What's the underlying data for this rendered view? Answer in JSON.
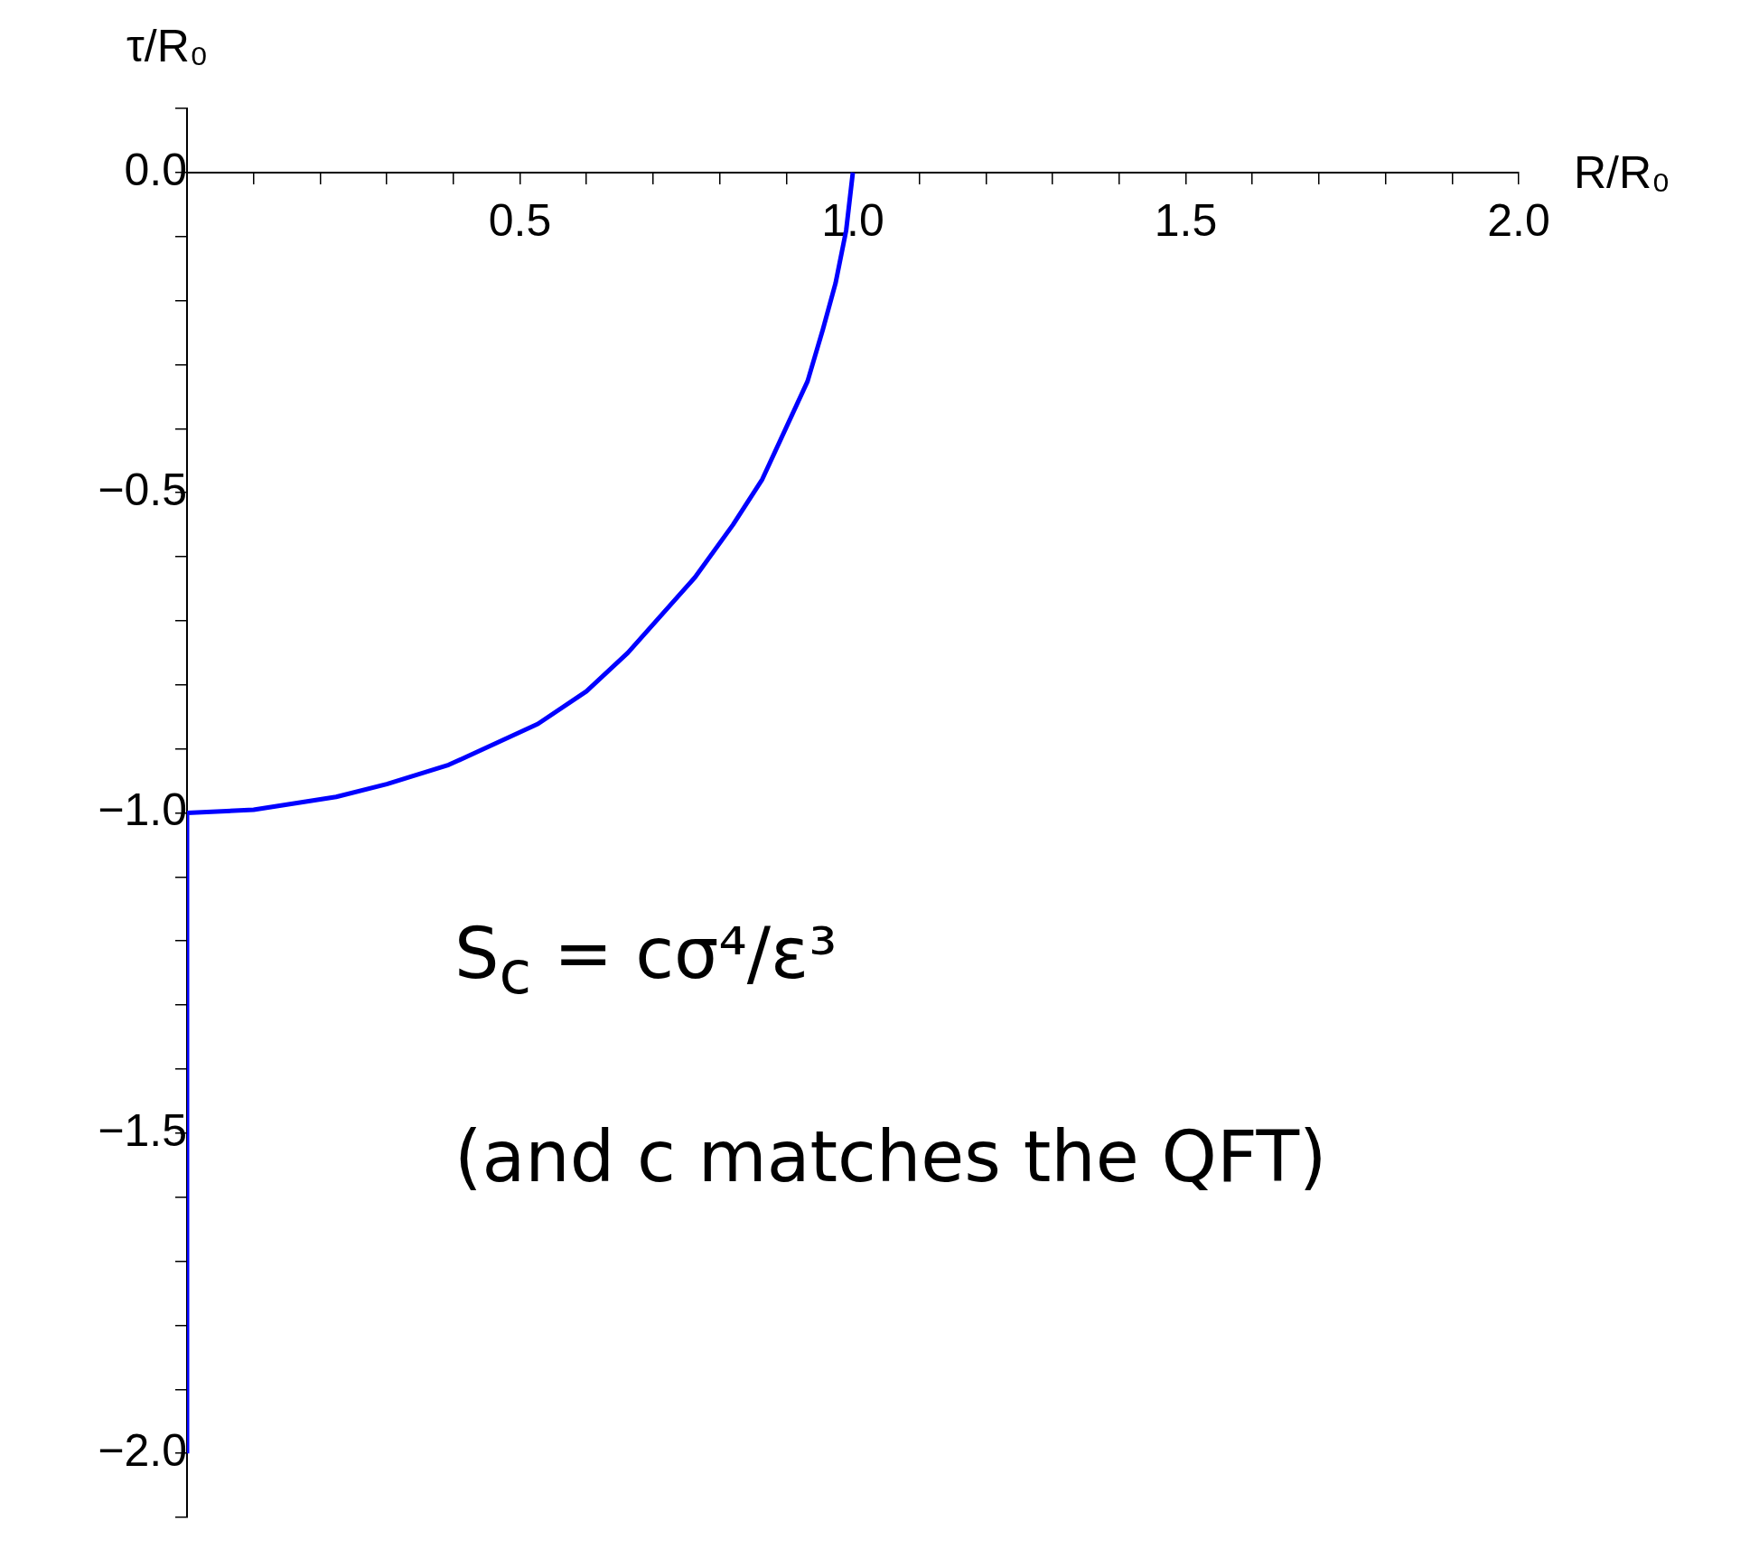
{
  "chart_data": {
    "type": "line",
    "xlabel": "R/R₀",
    "ylabel": "τ/R₀",
    "annotations": [
      "S$_{c}$ = cσ⁴/ε³",
      "(and c matches the QFT)"
    ],
    "xlim": [
      0,
      2
    ],
    "ylim": [
      -2.1,
      0.1
    ],
    "xticks": [
      {
        "value": 0,
        "label": null
      },
      {
        "value": 0.1,
        "label": null
      },
      {
        "value": 0.2,
        "label": null
      },
      {
        "value": 0.3,
        "label": null
      },
      {
        "value": 0.4,
        "label": null
      },
      {
        "value": 0.5,
        "label": "0.5"
      },
      {
        "value": 0.6,
        "label": null
      },
      {
        "value": 0.7,
        "label": null
      },
      {
        "value": 0.8,
        "label": null
      },
      {
        "value": 0.9,
        "label": null
      },
      {
        "value": 1,
        "label": "1.0"
      },
      {
        "value": 1.1,
        "label": null
      },
      {
        "value": 1.2,
        "label": null
      },
      {
        "value": 1.3,
        "label": null
      },
      {
        "value": 1.4,
        "label": null
      },
      {
        "value": 1.5,
        "label": "1.5"
      },
      {
        "value": 1.6,
        "label": null
      },
      {
        "value": 1.7,
        "label": null
      },
      {
        "value": 1.8,
        "label": null
      },
      {
        "value": 1.9,
        "label": null
      },
      {
        "value": 2,
        "label": "2.0"
      }
    ],
    "yticks": [
      {
        "value": 0.1,
        "label": null
      },
      {
        "value": 0,
        "label": "0.0"
      },
      {
        "value": -0.1,
        "label": null
      },
      {
        "value": -0.2,
        "label": null
      },
      {
        "value": -0.3,
        "label": null
      },
      {
        "value": -0.4,
        "label": null
      },
      {
        "value": -0.5,
        "label": "−0.5"
      },
      {
        "value": -0.6,
        "label": null
      },
      {
        "value": -0.7,
        "label": null
      },
      {
        "value": -0.8,
        "label": null
      },
      {
        "value": -0.9,
        "label": null
      },
      {
        "value": -1,
        "label": "−1.0"
      },
      {
        "value": -1.1,
        "label": null
      },
      {
        "value": -1.2,
        "label": null
      },
      {
        "value": -1.3,
        "label": null
      },
      {
        "value": -1.4,
        "label": null
      },
      {
        "value": -1.5,
        "label": "−1.5"
      },
      {
        "value": -1.6,
        "label": null
      },
      {
        "value": -1.7,
        "label": null
      },
      {
        "value": -1.8,
        "label": null
      },
      {
        "value": -1.9,
        "label": null
      },
      {
        "value": -2,
        "label": "−2.0"
      },
      {
        "value": -2.1,
        "label": null
      }
    ],
    "series": [
      {
        "color": "#0000ff",
        "x": [
          0,
          0,
          0.1,
          0.224,
          0.3,
          0.393,
          0.527,
          0.6,
          0.662,
          0.763,
          0.82,
          0.864,
          0.932,
          0.955,
          0.974,
          0.99,
          1.0
        ],
        "values": [
          -2,
          -1,
          -0.995,
          -0.975,
          -0.955,
          -0.925,
          -0.861,
          -0.81,
          -0.75,
          -0.632,
          -0.55,
          -0.479,
          -0.326,
          -0.245,
          -0.173,
          -0.09,
          0
        ]
      }
    ]
  }
}
